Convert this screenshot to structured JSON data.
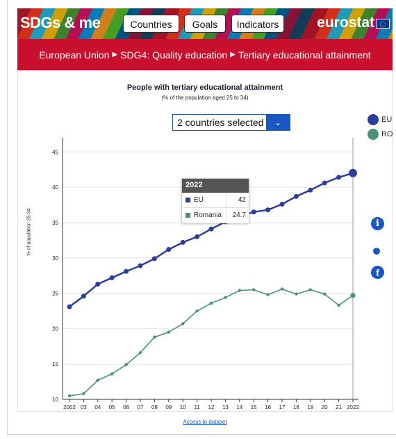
{
  "header": {
    "brand": "SDGs & me",
    "nav": [
      "Countries",
      "Goals",
      "Indicators"
    ],
    "logo": "eurostat"
  },
  "breadcrumb": [
    "European Union",
    "SDG4: Quality education",
    "Tertiary educational attainment"
  ],
  "select": {
    "value": "2 countries selected",
    "icon": "chevron-down-icon"
  },
  "legend": [
    {
      "label": "EU",
      "color": "#2c3e9c"
    },
    {
      "label": "RO",
      "color": "#4a917a"
    }
  ],
  "tooltip": {
    "year": "2022",
    "rows": [
      {
        "name": "EU",
        "value": "42",
        "color": "#2c3e9c"
      },
      {
        "name": "Romania",
        "value": "24.7",
        "color": "#4a917a"
      }
    ]
  },
  "footer": {
    "access_label": "Access to dataset"
  },
  "chart_data": {
    "type": "line",
    "title": "People with tertiary educational attainment",
    "subtitle": "(% of the population aged 25 to 34)",
    "ylabel": "% of population 25-34",
    "xlabel": "",
    "ylim": [
      10,
      47
    ],
    "yticks": [
      10,
      15,
      20,
      25,
      30,
      35,
      40,
      45
    ],
    "x": [
      2002,
      2003,
      2004,
      2005,
      2006,
      2007,
      2008,
      2009,
      2010,
      2011,
      2012,
      2013,
      2014,
      2015,
      2016,
      2017,
      2018,
      2019,
      2020,
      2021,
      2022
    ],
    "xticklabels": [
      "2002",
      "03",
      "04",
      "05",
      "06",
      "07",
      "08",
      "09",
      "10",
      "11",
      "12",
      "13",
      "14",
      "15",
      "16",
      "17",
      "18",
      "19",
      "20",
      "21",
      "2022"
    ],
    "series": [
      {
        "name": "EU",
        "color": "#2c3e9c",
        "values": [
          23.1,
          24.6,
          26.3,
          27.2,
          28.1,
          28.9,
          29.9,
          31.2,
          32.2,
          33.0,
          34.1,
          35.1,
          35.9,
          36.5,
          36.8,
          37.6,
          38.7,
          39.6,
          40.6,
          41.4,
          42.0
        ]
      },
      {
        "name": "RO",
        "color": "#4a917a",
        "values": [
          10.5,
          10.8,
          12.7,
          13.6,
          14.9,
          16.6,
          18.8,
          19.5,
          20.7,
          22.5,
          23.6,
          24.4,
          25.4,
          25.5,
          24.8,
          25.6,
          24.9,
          25.5,
          24.9,
          23.3,
          24.7
        ]
      }
    ],
    "grid": true,
    "legend_position": "right"
  }
}
